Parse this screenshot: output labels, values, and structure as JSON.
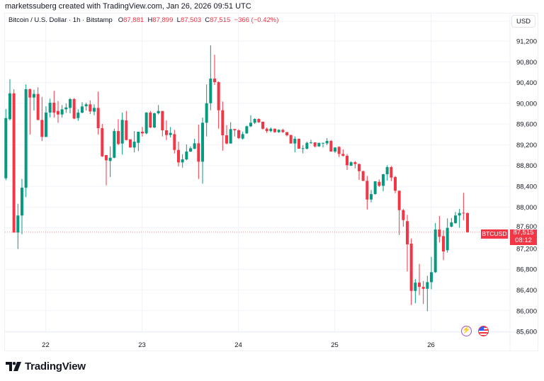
{
  "credit": "marketssuberg created with TradingView.com, Jan 26, 2026 09:51 UTC",
  "legend": {
    "symbol": "Bitcoin / U.S. Dollar · 1h · Bitstamp",
    "o_label": "O",
    "o": "87,881",
    "h_label": "H",
    "h": "87,899",
    "l_label": "L",
    "l": "87,503",
    "c_label": "C",
    "c": "87,515",
    "change": "−366 (−0.42%)"
  },
  "currency_button": "USD",
  "price_tag": {
    "ticker": "BTCUSD",
    "price": "87,515",
    "countdown": "08:12"
  },
  "brand": "TradingView",
  "icons": [
    "tradingview-logo-icon",
    "lightning-icon",
    "us-flag-icon"
  ],
  "colors": {
    "up": "#089981",
    "down": "#f23645",
    "grid": "#f0f3fa",
    "text": "#131722"
  },
  "chart_data": {
    "type": "candlestick",
    "interval": "1h",
    "first_bar": "Jan 21 14:00",
    "ylim": [
      85400,
      91400
    ],
    "y_ticks": [
      "91,200",
      "90,800",
      "90,400",
      "90,000",
      "89,600",
      "89,200",
      "88,800",
      "88,400",
      "88,000",
      "87,600",
      "87,200",
      "86,800",
      "86,400",
      "86,000",
      "85,600"
    ],
    "y_tick_values": [
      91200,
      90800,
      90400,
      90000,
      89600,
      89200,
      88800,
      88400,
      88000,
      87600,
      87200,
      86800,
      86400,
      86000,
      85600
    ],
    "x_ticks": [
      "22",
      "23",
      "24",
      "25",
      "26"
    ],
    "x_tick_bar_index": [
      10,
      34,
      58,
      82,
      106
    ],
    "last_price": 87515,
    "candles": [
      [
        88555,
        89890,
        88520,
        89715
      ],
      [
        89693,
        90466,
        89670,
        90193
      ],
      [
        90193,
        90271,
        87508,
        87508
      ],
      [
        87508,
        88063,
        87190,
        87836
      ],
      [
        87836,
        88540,
        87475,
        88372
      ],
      [
        88372,
        90363,
        88190,
        90271
      ],
      [
        90271,
        90285,
        89397,
        90111
      ],
      [
        90111,
        90262,
        89861,
        90180
      ],
      [
        90180,
        90308,
        89670,
        89680
      ],
      [
        89680,
        90125,
        89270,
        89352
      ],
      [
        89352,
        89943,
        89352,
        89820
      ],
      [
        89820,
        90089,
        89725,
        90011
      ],
      [
        90011,
        90240,
        89725,
        89820
      ],
      [
        89852,
        90043,
        89625,
        89784
      ],
      [
        89784,
        89966,
        89725,
        89884
      ],
      [
        89884,
        89998,
        89816,
        89920
      ],
      [
        89911,
        90103,
        89807,
        90080
      ],
      [
        90080,
        90103,
        89693,
        89707
      ],
      [
        89715,
        89884,
        89661,
        89820
      ],
      [
        89820,
        90021,
        89807,
        89939
      ],
      [
        89943,
        90011,
        89861,
        89980
      ],
      [
        89980,
        90057,
        89793,
        89843
      ],
      [
        89839,
        89980,
        89770,
        89911
      ],
      [
        89911,
        90226,
        89397,
        89520
      ],
      [
        89520,
        89602,
        88964,
        88977
      ],
      [
        89001,
        89001,
        88418,
        88900
      ],
      [
        88888,
        89169,
        88577,
        88950
      ],
      [
        88950,
        89510,
        88940,
        89465
      ],
      [
        89465,
        89693,
        89192,
        89215
      ],
      [
        89224,
        89820,
        89010,
        89680
      ],
      [
        89670,
        89852,
        89285,
        89292
      ],
      [
        89306,
        89306,
        89147,
        89147
      ],
      [
        89147,
        89465,
        89055,
        89260
      ],
      [
        89237,
        89452,
        89078,
        89452
      ],
      [
        89452,
        89543,
        89361,
        89420
      ],
      [
        89420,
        89830,
        89406,
        89820
      ],
      [
        89820,
        89852,
        89520,
        89534
      ],
      [
        89534,
        89820,
        89520,
        89807
      ],
      [
        89807,
        89966,
        89784,
        89852
      ],
      [
        89852,
        89852,
        89361,
        89479
      ],
      [
        89479,
        89670,
        89292,
        89388
      ],
      [
        89388,
        89543,
        89342,
        89429
      ],
      [
        89406,
        89488,
        89033,
        89101
      ],
      [
        89101,
        89260,
        88782,
        88860
      ],
      [
        88860,
        89019,
        88759,
        88919
      ],
      [
        88919,
        89206,
        88900,
        89069
      ],
      [
        89069,
        89169,
        89060,
        89133
      ],
      [
        89124,
        89315,
        89115,
        89229
      ],
      [
        89229,
        89588,
        88540,
        88874
      ],
      [
        88874,
        89725,
        88450,
        89625
      ],
      [
        89625,
        90363,
        89361,
        90001
      ],
      [
        90001,
        91118,
        89866,
        90476
      ],
      [
        90476,
        90936,
        90353,
        90408
      ],
      [
        90408,
        90422,
        89510,
        89866
      ],
      [
        89866,
        90035,
        89087,
        89383
      ],
      [
        89383,
        89579,
        89210,
        89224
      ],
      [
        89224,
        89634,
        89224,
        89502
      ],
      [
        89502,
        89510,
        89361,
        89479
      ],
      [
        89479,
        89502,
        89310,
        89329
      ],
      [
        89319,
        89452,
        89300,
        89406
      ],
      [
        89420,
        89570,
        89410,
        89557
      ],
      [
        89557,
        89770,
        89540,
        89625
      ],
      [
        89625,
        89710,
        89600,
        89698
      ],
      [
        89698,
        89710,
        89620,
        89634
      ],
      [
        89643,
        89650,
        89490,
        89510
      ],
      [
        89510,
        89534,
        89429,
        89465
      ],
      [
        89465,
        89534,
        89440,
        89510
      ],
      [
        89510,
        89515,
        89430,
        89443
      ],
      [
        89443,
        89500,
        89430,
        89488
      ],
      [
        89488,
        89510,
        89430,
        89443
      ],
      [
        89443,
        89450,
        89361,
        89383
      ],
      [
        89388,
        89395,
        89224,
        89224
      ],
      [
        89224,
        89361,
        89055,
        89315
      ],
      [
        89315,
        89320,
        89124,
        89124
      ],
      [
        89124,
        89192,
        89033,
        89133
      ],
      [
        89124,
        89260,
        89110,
        89237
      ],
      [
        89237,
        89297,
        89220,
        89246
      ],
      [
        89246,
        89250,
        89147,
        89169
      ],
      [
        89169,
        89240,
        89160,
        89237
      ],
      [
        89228,
        89240,
        89147,
        89237
      ],
      [
        89228,
        89329,
        89192,
        89274
      ],
      [
        89274,
        89290,
        89069,
        89069
      ],
      [
        89069,
        89155,
        89042,
        89147
      ],
      [
        89160,
        89170,
        88964,
        89024
      ],
      [
        89024,
        89110,
        88975,
        88987
      ],
      [
        88987,
        89024,
        88714,
        88805
      ],
      [
        88796,
        88880,
        88790,
        88864
      ],
      [
        88864,
        88888,
        88746,
        88828
      ],
      [
        88828,
        88840,
        88523,
        88691
      ],
      [
        88691,
        88700,
        88500,
        88505
      ],
      [
        88505,
        88600,
        87953,
        88144
      ],
      [
        88144,
        88327,
        88090,
        88249
      ],
      [
        88249,
        88500,
        88240,
        88495
      ],
      [
        88486,
        88532,
        88386,
        88409
      ],
      [
        88409,
        88640,
        88304,
        88632
      ],
      [
        88632,
        88805,
        88509,
        88769
      ],
      [
        88769,
        88790,
        88500,
        88568
      ],
      [
        88577,
        88600,
        88267,
        88314
      ],
      [
        88314,
        88320,
        87461,
        87940
      ],
      [
        87940,
        87963,
        87621,
        87748
      ],
      [
        87726,
        87849,
        86756,
        87280
      ],
      [
        87294,
        87393,
        86109,
        86382
      ],
      [
        86382,
        86610,
        86142,
        86542
      ],
      [
        86542,
        86901,
        86300,
        86460
      ],
      [
        86460,
        86573,
        86128,
        86423
      ],
      [
        86423,
        86674,
        85991,
        86551
      ],
      [
        86551,
        87038,
        86414,
        86742
      ],
      [
        86742,
        87689,
        86730,
        87566
      ],
      [
        87566,
        87826,
        87316,
        87426
      ],
      [
        87439,
        87552,
        86975,
        87143
      ],
      [
        87166,
        87781,
        87120,
        87598
      ],
      [
        87621,
        87789,
        87610,
        87703
      ],
      [
        87689,
        87904,
        87680,
        87836
      ],
      [
        87836,
        87963,
        87598,
        87885
      ],
      [
        87890,
        88273,
        87744,
        87881
      ],
      [
        87881,
        87899,
        87503,
        87515
      ]
    ]
  }
}
